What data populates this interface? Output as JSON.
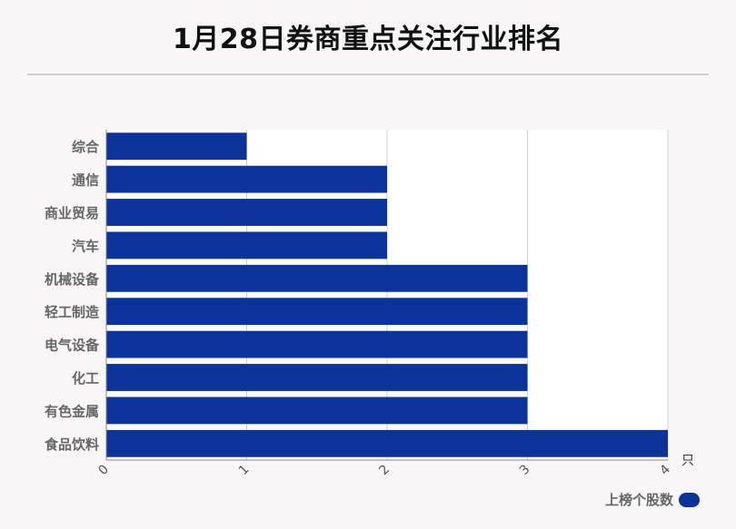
{
  "title": "1月28日券商重点关注行业排名",
  "chart_data": {
    "type": "bar",
    "orientation": "horizontal",
    "categories": [
      "综合",
      "通信",
      "商业贸易",
      "汽车",
      "机械设备",
      "轻工制造",
      "电气设备",
      "化工",
      "有色金属",
      "食品饮料"
    ],
    "series": [
      {
        "name": "上榜个股数",
        "values": [
          1,
          2,
          2,
          2,
          3,
          3,
          3,
          3,
          3,
          4
        ]
      }
    ],
    "xlim": [
      0,
      4
    ],
    "xticks": [
      "0",
      "1",
      "2",
      "3",
      "4"
    ],
    "xunit": "只",
    "grid": true,
    "legend_position": "bottom-right",
    "bar_color": "#0b3399"
  }
}
